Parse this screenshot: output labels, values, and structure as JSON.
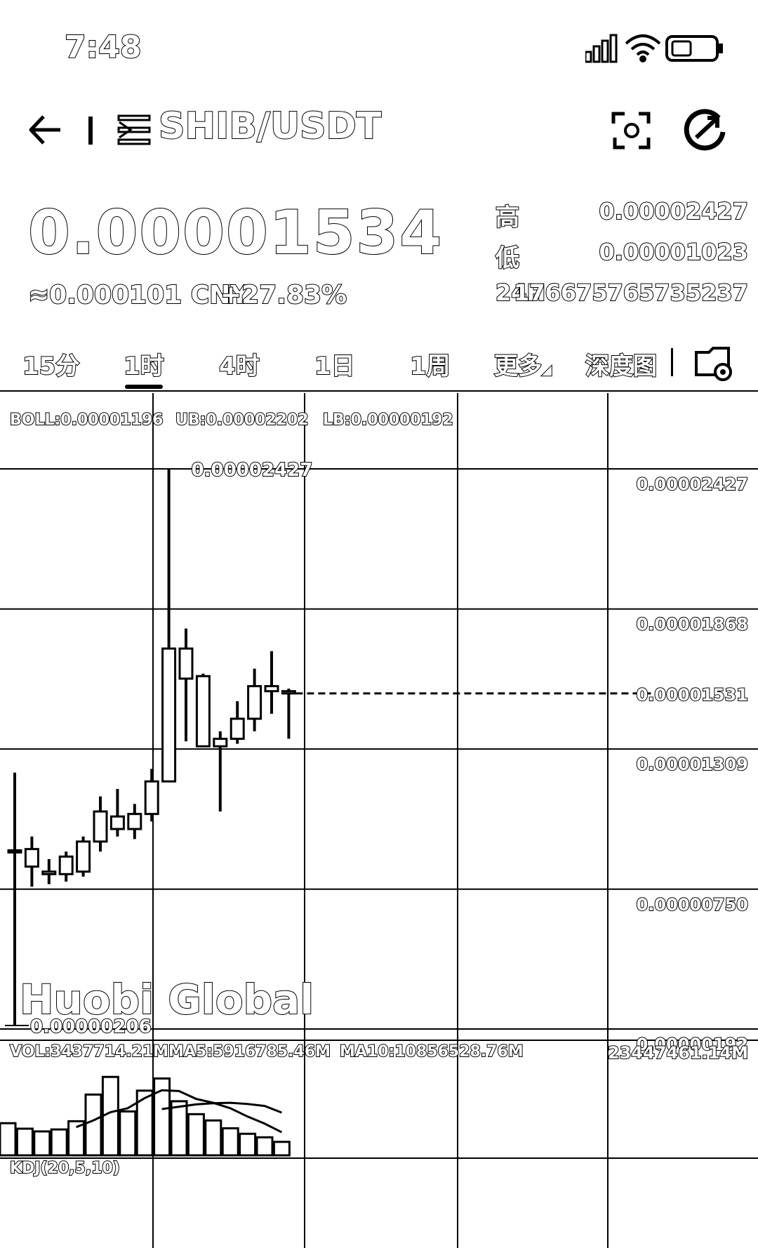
{
  "status": {
    "time": "7:48"
  },
  "header": {
    "pair": "SHIB/USDT"
  },
  "ticker": {
    "price": "0.00001534",
    "cny": "≈0.000101 CNY",
    "change": "+27.83%",
    "high_label": "高",
    "high_value": "0.00002427",
    "low_label": "低",
    "low_value": "0.00001023",
    "volume_label": "24H",
    "volume_value": "176675765735237"
  },
  "tabs": [
    {
      "label": "15分"
    },
    {
      "label": "1时",
      "active": true
    },
    {
      "label": "4时"
    },
    {
      "label": "1日"
    },
    {
      "label": "1周"
    },
    {
      "label": "更多"
    },
    {
      "label": "深度图"
    }
  ],
  "indicators": {
    "boll": "BOLL:0.00001196",
    "ub": "UB:0.00002202",
    "lb": "LB:0.00000192",
    "vol": "VOL:3437714.21M",
    "ma5": "MA5:5916785.46M",
    "ma10": "MA10:10856528.76M",
    "vol_axis": "23447461.14M",
    "kdj": "KDJ(20,5,10)"
  },
  "watermark": "Huobi Global",
  "chart_data": {
    "type": "candlestick",
    "y_ticks": [
      "0.00002427",
      "0.00001868",
      "0.00001309",
      "0.00000750",
      "0.00000192"
    ],
    "ylim": [
      1.92e-06,
      2.427e-05
    ],
    "current_price_label": "0.00001531",
    "current_price": 1.531e-05,
    "max_label": "0.00002427",
    "min_label": "0.00000206",
    "candles": [
      {
        "o": 9.05e-06,
        "h": 1.215e-05,
        "l": 2.06e-06,
        "c": 9.05e-06
      },
      {
        "o": 9.1e-06,
        "h": 9.6e-06,
        "l": 7.6e-06,
        "c": 8.4e-06
      },
      {
        "o": 8.2e-06,
        "h": 8.7e-06,
        "l": 7.7e-06,
        "c": 8.1e-06
      },
      {
        "o": 8.1e-06,
        "h": 9e-06,
        "l": 7.8e-06,
        "c": 8.8e-06
      },
      {
        "o": 8.2e-06,
        "h": 9.6e-06,
        "l": 8e-06,
        "c": 9.4e-06
      },
      {
        "o": 9.4e-06,
        "h": 1.12e-05,
        "l": 9e-06,
        "c": 1.06e-05
      },
      {
        "o": 1.04e-05,
        "h": 1.15e-05,
        "l": 9.6e-06,
        "c": 9.9e-06
      },
      {
        "o": 9.9e-06,
        "h": 1.09e-05,
        "l": 9.5e-06,
        "c": 1.05e-05
      },
      {
        "o": 1.05e-05,
        "h": 1.23e-05,
        "l": 1.02e-05,
        "c": 1.18e-05
      },
      {
        "o": 1.18e-05,
        "h": 2.427e-05,
        "l": 1.18e-05,
        "c": 1.71e-05
      },
      {
        "o": 1.71e-05,
        "h": 1.79e-05,
        "l": 1.34e-05,
        "c": 1.59e-05
      },
      {
        "o": 1.6e-05,
        "h": 1.61e-05,
        "l": 1.32e-05,
        "c": 1.32e-05
      },
      {
        "o": 1.32e-05,
        "h": 1.38e-05,
        "l": 1.06e-05,
        "c": 1.35e-05
      },
      {
        "o": 1.35e-05,
        "h": 1.5e-05,
        "l": 1.33e-05,
        "c": 1.43e-05
      },
      {
        "o": 1.43e-05,
        "h": 1.63e-05,
        "l": 1.38e-05,
        "c": 1.56e-05
      },
      {
        "o": 1.56e-05,
        "h": 1.7e-05,
        "l": 1.45e-05,
        "c": 1.54e-05
      },
      {
        "o": 1.54e-05,
        "h": 1.55e-05,
        "l": 1.35e-05,
        "c": 1.531e-05
      }
    ],
    "volume_max": 23447461.14,
    "volumes": [
      8200000,
      6800000,
      6100000,
      6600000,
      8700000,
      15500000,
      20000000,
      11200000,
      16500000,
      19600000,
      13800000,
      10500000,
      8900000,
      6900000,
      5500000,
      4600000,
      3437714.21
    ],
    "ma5_line": [
      null,
      null,
      null,
      null,
      7200000,
      8900000,
      11000000,
      12000000,
      14600000,
      16600000,
      16400000,
      14400000,
      13400000,
      12000000,
      9900000,
      8100000,
      5900000
    ],
    "ma10_line": [
      null,
      null,
      null,
      null,
      null,
      null,
      null,
      null,
      null,
      11800000,
      12400000,
      13000000,
      13300000,
      13400000,
      13100000,
      12600000,
      10900000
    ]
  }
}
